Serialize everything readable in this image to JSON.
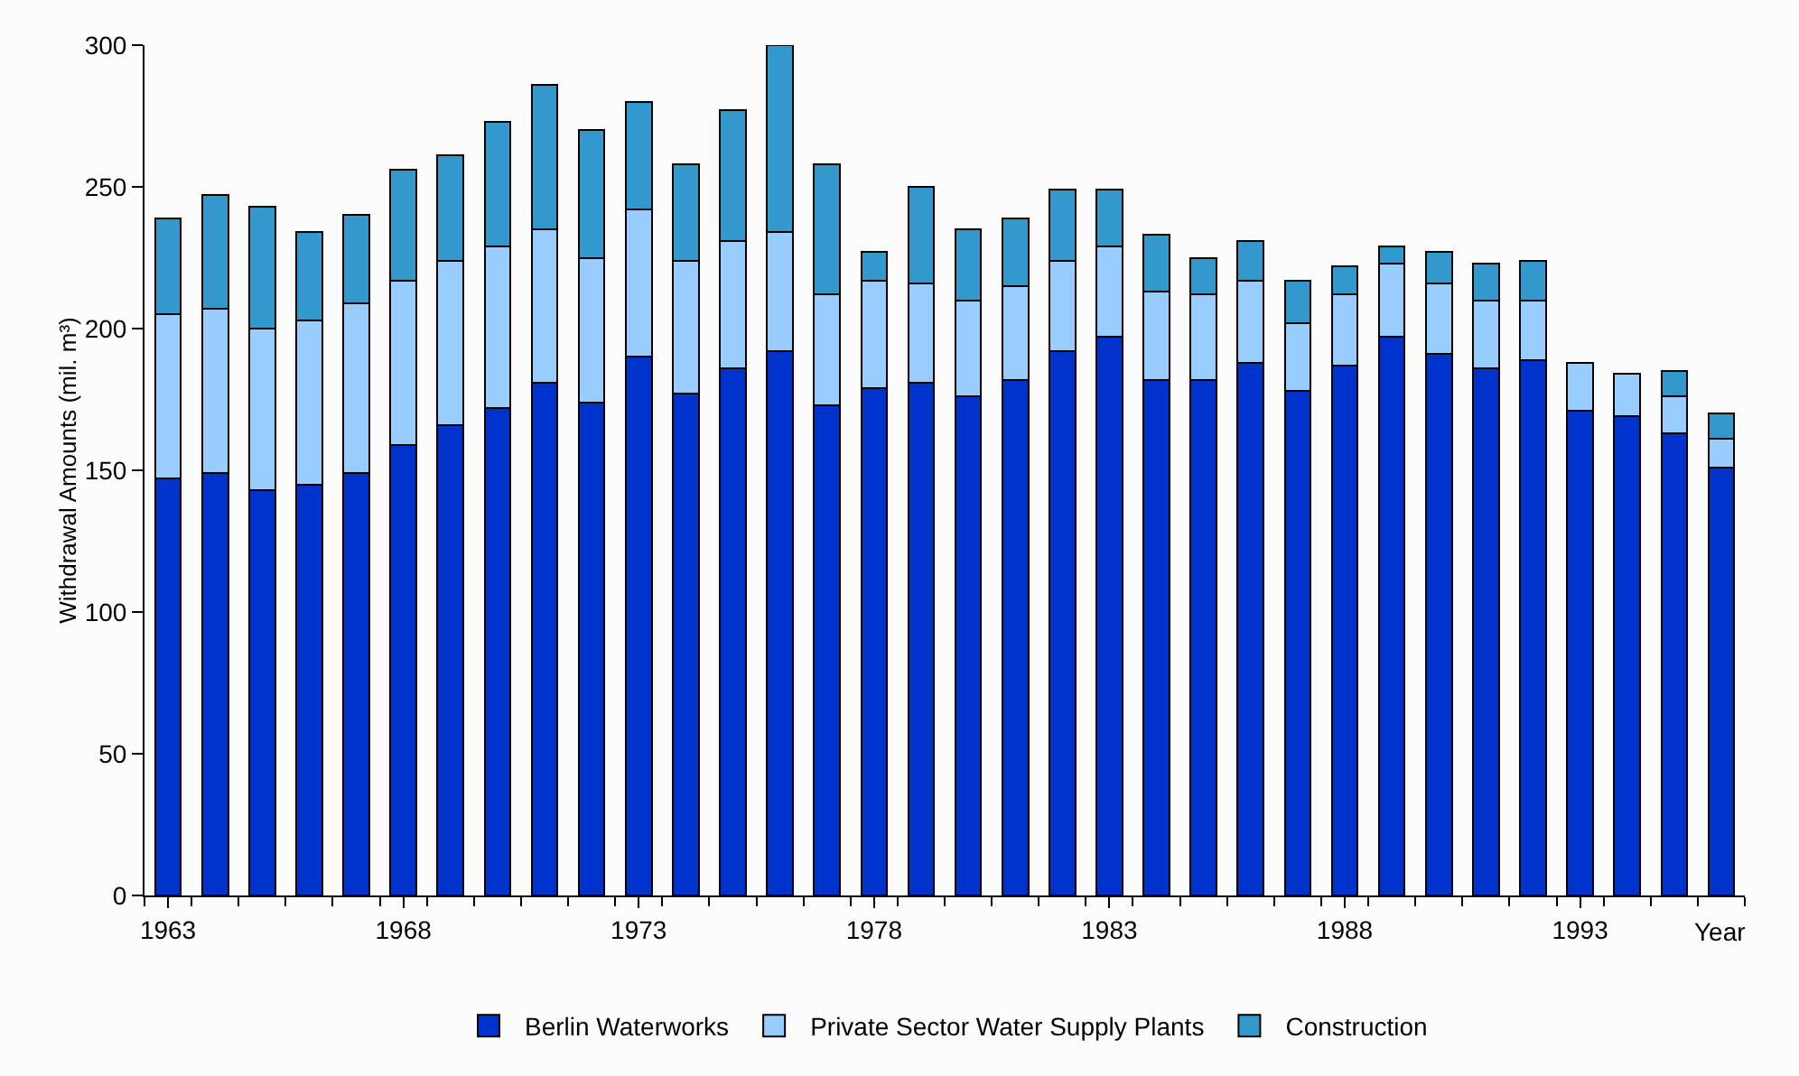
{
  "chart_data": {
    "type": "bar",
    "stacked": true,
    "xlabel": "Year",
    "ylabel": "Withdrawal Amounts (mil. m³)",
    "categories": [
      "1963",
      null,
      null,
      null,
      null,
      "1968",
      null,
      null,
      null,
      null,
      "1973",
      null,
      null,
      null,
      null,
      "1978",
      null,
      null,
      null,
      null,
      "1983",
      null,
      null,
      null,
      null,
      "1988",
      null,
      null,
      null,
      null,
      "1993",
      null,
      null,
      null
    ],
    "series": [
      {
        "name": "Berlin Waterworks",
        "color": "#0033cc",
        "values": [
          147,
          149,
          143,
          145,
          149,
          159,
          166,
          172,
          181,
          174,
          190,
          177,
          186,
          192,
          173,
          179,
          181,
          176,
          182,
          192,
          197,
          182,
          182,
          188,
          178,
          187,
          197,
          191,
          186,
          189,
          171,
          169,
          163,
          151
        ]
      },
      {
        "name": "Private Sector Water Supply Plants",
        "color": "#99ccff",
        "values": [
          58,
          58,
          57,
          58,
          60,
          58,
          58,
          57,
          54,
          51,
          52,
          47,
          45,
          42,
          39,
          38,
          35,
          34,
          33,
          32,
          32,
          31,
          30,
          29,
          24,
          25,
          26,
          25,
          24,
          21,
          17,
          15,
          13,
          10
        ]
      },
      {
        "name": "Construction",
        "color": "#3399cc",
        "values": [
          34,
          40,
          43,
          31,
          31,
          39,
          37,
          44,
          51,
          45,
          38,
          34,
          46,
          66,
          46,
          10,
          34,
          25,
          24,
          25,
          20,
          20,
          13,
          14,
          15,
          10,
          6,
          11,
          13,
          14,
          null,
          null,
          9,
          9
        ]
      }
    ],
    "ylim": [
      0,
      300
    ],
    "yticks": [
      0,
      50,
      100,
      150,
      200,
      250,
      300
    ],
    "grid": false,
    "legend": "bottom"
  }
}
